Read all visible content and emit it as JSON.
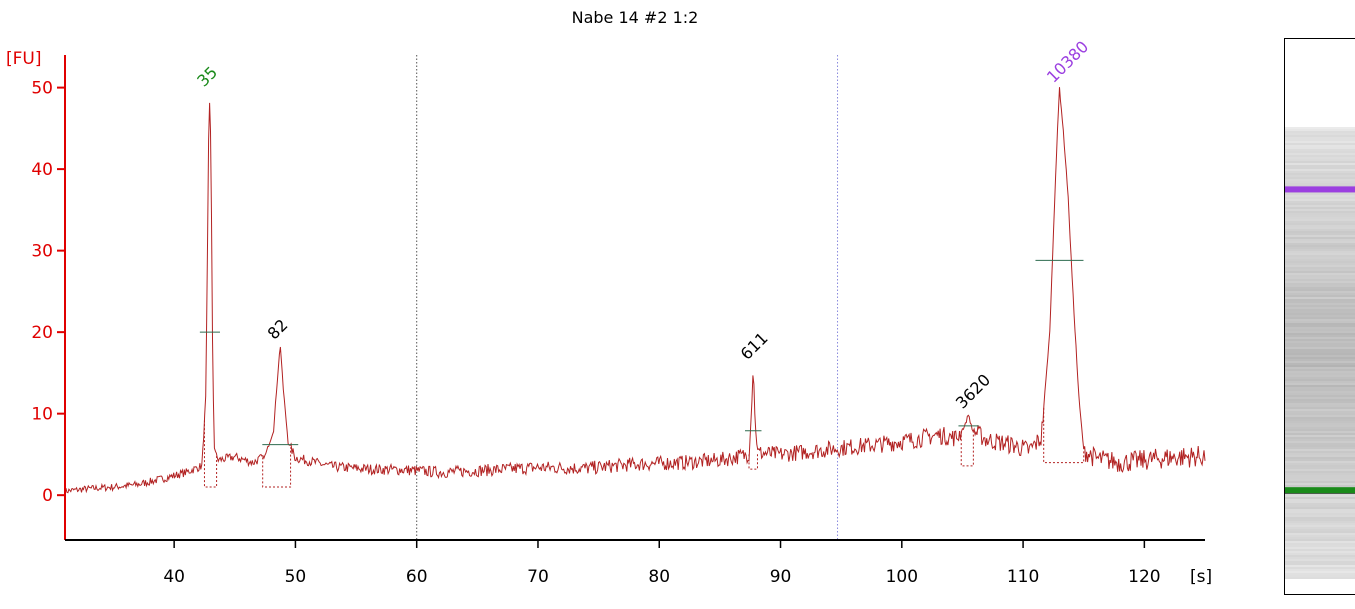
{
  "chart_data": {
    "type": "line",
    "title": "Nabe 14 #2 1:2",
    "ylabel": "[FU]",
    "xlabel": "[s]",
    "xlim": [
      31,
      125
    ],
    "ylim": [
      -5.5,
      54
    ],
    "x_ticks": [
      40,
      50,
      60,
      70,
      80,
      90,
      100,
      110,
      120
    ],
    "y_ticks": [
      0,
      10,
      20,
      30,
      40,
      50
    ],
    "colors": {
      "axis": "#e00000",
      "trace": "#b22222",
      "lower_marker": "#1a8a1a",
      "upper_marker": "#9b3fe0"
    },
    "series": [
      {
        "points": [
          [
            31,
            0.5
          ],
          [
            33,
            0.8
          ],
          [
            35,
            1.0
          ],
          [
            37,
            1.3
          ],
          [
            39,
            2.0
          ],
          [
            41,
            2.8
          ],
          [
            42.3,
            3.6
          ],
          [
            42.6,
            12
          ],
          [
            42.75,
            30
          ],
          [
            42.85,
            45
          ],
          [
            42.95,
            49.5
          ],
          [
            43.05,
            40
          ],
          [
            43.15,
            20
          ],
          [
            43.3,
            6
          ],
          [
            43.6,
            4.3
          ],
          [
            45,
            4.7
          ],
          [
            46.5,
            4.0
          ],
          [
            47.5,
            4.8
          ],
          [
            48.2,
            8
          ],
          [
            48.5,
            14
          ],
          [
            48.75,
            18.5
          ],
          [
            49.0,
            13
          ],
          [
            49.4,
            6.5
          ],
          [
            50,
            4.6
          ],
          [
            53,
            3.5
          ],
          [
            56,
            3.2
          ],
          [
            59,
            3.1
          ],
          [
            62,
            2.8
          ],
          [
            65,
            3.0
          ],
          [
            70,
            3.4
          ],
          [
            74,
            3.3
          ],
          [
            78,
            3.8
          ],
          [
            82,
            4.0
          ],
          [
            85,
            4.3
          ],
          [
            87.4,
            5.0
          ],
          [
            87.6,
            10
          ],
          [
            87.75,
            16
          ],
          [
            87.9,
            9
          ],
          [
            88.1,
            5.2
          ],
          [
            90,
            5.0
          ],
          [
            92,
            5.3
          ],
          [
            95,
            5.8
          ],
          [
            98,
            6.2
          ],
          [
            101,
            6.8
          ],
          [
            103,
            7.4
          ],
          [
            104.5,
            7.0
          ],
          [
            105.2,
            8.5
          ],
          [
            105.5,
            10.0
          ],
          [
            105.8,
            8.0
          ],
          [
            107,
            6.8
          ],
          [
            109,
            6.2
          ],
          [
            110.5,
            5.5
          ],
          [
            111.5,
            7
          ],
          [
            112.2,
            20
          ],
          [
            112.7,
            40
          ],
          [
            113.0,
            50
          ],
          [
            113.3,
            45
          ],
          [
            113.7,
            37
          ],
          [
            114.1,
            25
          ],
          [
            114.6,
            12
          ],
          [
            115.0,
            5.5
          ],
          [
            116,
            4.5
          ],
          [
            118,
            4.0
          ],
          [
            120,
            4.3
          ],
          [
            122,
            4.6
          ],
          [
            125,
            4.8
          ]
        ]
      }
    ],
    "peaks": [
      {
        "label": "35",
        "x": 42.95,
        "y": 49.5,
        "color": "#1a8a1a",
        "mid_y": 20,
        "base_y": 1.0,
        "x0": 42.5,
        "x1": 43.5
      },
      {
        "label": "82",
        "x": 48.75,
        "y": 18.5,
        "color": "#000000",
        "mid_y": 6.2,
        "base_y": 1.0,
        "x0": 47.3,
        "x1": 49.6
      },
      {
        "label": "611",
        "x": 87.75,
        "y": 16,
        "color": "#000000",
        "mid_y": 7.9,
        "base_y": 3.2,
        "x0": 87.4,
        "x1": 88.1
      },
      {
        "label": "3620",
        "x": 105.5,
        "y": 10.0,
        "color": "#000000",
        "mid_y": 8.5,
        "base_y": 3.6,
        "x0": 104.9,
        "x1": 105.9
      },
      {
        "label": "10380",
        "x": 113.0,
        "y": 50,
        "color": "#9b3fe0",
        "mid_y": 28.8,
        "base_y": 4.0,
        "x0": 111.7,
        "x1": 115.0
      }
    ],
    "reference_lines": [
      {
        "x": 60,
        "color": "#555555"
      },
      {
        "x": 94.7,
        "color": "#8888dd"
      }
    ],
    "gel_bands": [
      {
        "position": 0.27,
        "color": "#9b3fe0"
      },
      {
        "position": 0.81,
        "color": "#1a8a1a"
      }
    ]
  }
}
